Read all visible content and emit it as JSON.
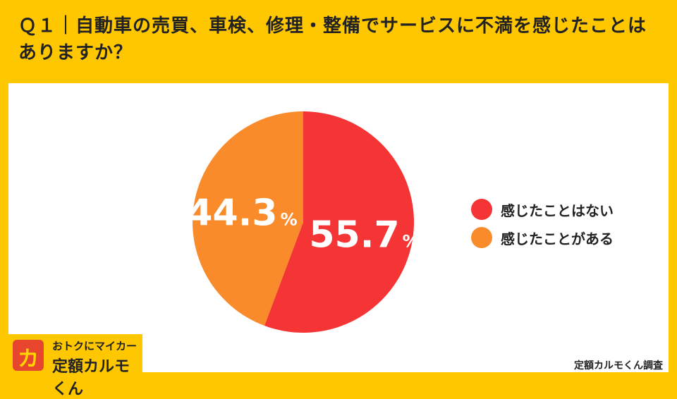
{
  "title": "Ｑ１｜自動車の売買、車検、修理・整備でサービスに不満を感じたことはありますか？",
  "chart_data": {
    "type": "pie",
    "slices": [
      {
        "label": "感じたことはない",
        "value": 55.7,
        "display": "55.7",
        "color": "#F53535"
      },
      {
        "label": "感じたことがある",
        "value": 44.3,
        "display": "44.3",
        "color": "#F98B2A"
      }
    ],
    "unit": "%"
  },
  "logo": {
    "top_text": "おトクにマイカー",
    "bottom_text": "定額カルモくん",
    "mark_glyph": "カ"
  },
  "source": "定額カルモくん調査"
}
